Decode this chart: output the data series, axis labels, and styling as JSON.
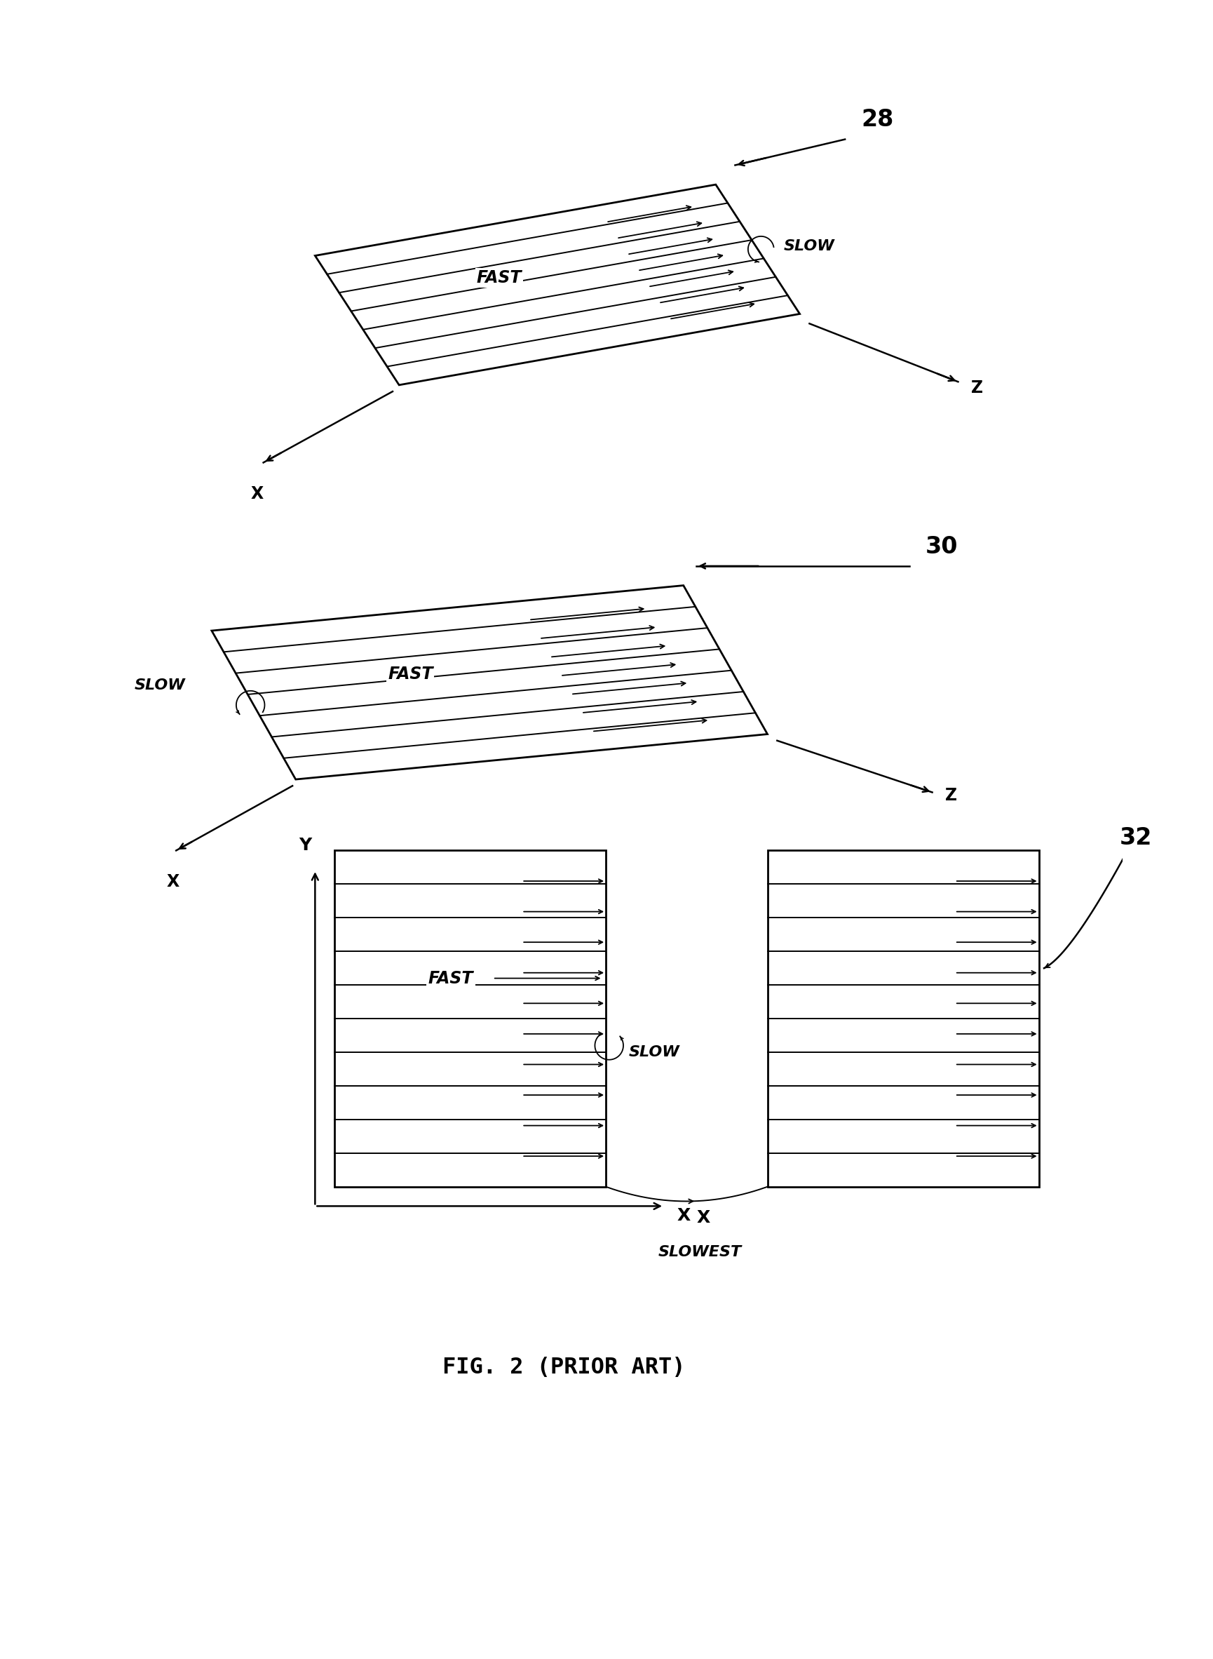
{
  "bg_color": "#ffffff",
  "line_color": "#000000",
  "fig_title": "FIG. 2 (PRIOR ART)",
  "label_28": "28",
  "label_30": "30",
  "label_32": "32",
  "label_fast": "FAST",
  "label_slow": "SLOW",
  "label_slowest": "SLOWEST",
  "label_x": "X",
  "label_y": "Y",
  "label_z": "Z",
  "n_scanlines_tilted": 7,
  "n_scanlines_front": 10
}
